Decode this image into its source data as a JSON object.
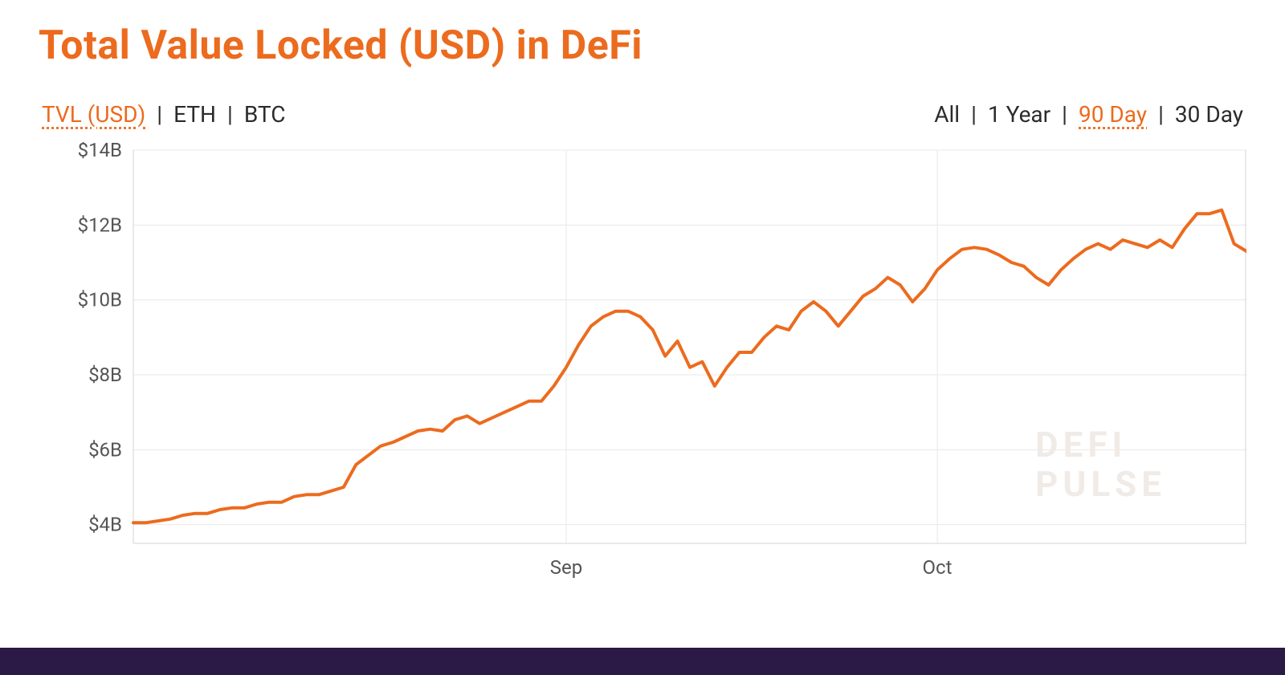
{
  "title": "Total Value Locked (USD) in DeFi",
  "colors": {
    "accent": "#ec6b1e",
    "text": "#2b2b2b",
    "grid": "#e8e8e8",
    "axis": "#d5d5d5",
    "watermark": "#f0ebe6",
    "footer": "#2b1a45",
    "background": "#ffffff"
  },
  "metric_tabs": {
    "items": [
      {
        "label": "TVL (USD)",
        "active": true
      },
      {
        "label": "ETH",
        "active": false
      },
      {
        "label": "BTC",
        "active": false
      }
    ],
    "separator": "|"
  },
  "range_tabs": {
    "items": [
      {
        "label": "All",
        "active": false
      },
      {
        "label": "1 Year",
        "active": false
      },
      {
        "label": "90 Day",
        "active": true
      },
      {
        "label": "30 Day",
        "active": false
      }
    ],
    "separator": "|"
  },
  "watermark": {
    "line1": "DEFI",
    "line2": "PULSE"
  },
  "chart": {
    "type": "line",
    "line_color": "#ec6b1e",
    "line_width": 4,
    "background_color": "#ffffff",
    "grid_color": "#e8e8e8",
    "axis_color": "#d5d5d5",
    "ylabel_color": "#555555",
    "xlabel_color": "#555555",
    "tick_fontsize": 24,
    "ylim": [
      3.5,
      14
    ],
    "yticks": [
      4,
      6,
      8,
      10,
      12,
      14
    ],
    "ytick_labels": [
      "$4B",
      "$6B",
      "$8B",
      "$10B",
      "$12B",
      "$14B"
    ],
    "xlim": [
      0,
      90
    ],
    "xticks": [
      {
        "x": 35,
        "label": "Sep"
      },
      {
        "x": 65,
        "label": "Oct"
      }
    ],
    "series": [
      {
        "x": 0,
        "y": 4.05
      },
      {
        "x": 1,
        "y": 4.05
      },
      {
        "x": 2,
        "y": 4.1
      },
      {
        "x": 3,
        "y": 4.15
      },
      {
        "x": 4,
        "y": 4.25
      },
      {
        "x": 5,
        "y": 4.3
      },
      {
        "x": 6,
        "y": 4.3
      },
      {
        "x": 7,
        "y": 4.4
      },
      {
        "x": 8,
        "y": 4.45
      },
      {
        "x": 9,
        "y": 4.45
      },
      {
        "x": 10,
        "y": 4.55
      },
      {
        "x": 11,
        "y": 4.6
      },
      {
        "x": 12,
        "y": 4.6
      },
      {
        "x": 13,
        "y": 4.75
      },
      {
        "x": 14,
        "y": 4.8
      },
      {
        "x": 15,
        "y": 4.8
      },
      {
        "x": 16,
        "y": 4.9
      },
      {
        "x": 17,
        "y": 5.0
      },
      {
        "x": 18,
        "y": 5.6
      },
      {
        "x": 19,
        "y": 5.85
      },
      {
        "x": 20,
        "y": 6.1
      },
      {
        "x": 21,
        "y": 6.2
      },
      {
        "x": 22,
        "y": 6.35
      },
      {
        "x": 23,
        "y": 6.5
      },
      {
        "x": 24,
        "y": 6.55
      },
      {
        "x": 25,
        "y": 6.5
      },
      {
        "x": 26,
        "y": 6.8
      },
      {
        "x": 27,
        "y": 6.9
      },
      {
        "x": 28,
        "y": 6.7
      },
      {
        "x": 29,
        "y": 6.85
      },
      {
        "x": 30,
        "y": 7.0
      },
      {
        "x": 31,
        "y": 7.15
      },
      {
        "x": 32,
        "y": 7.3
      },
      {
        "x": 33,
        "y": 7.3
      },
      {
        "x": 34,
        "y": 7.7
      },
      {
        "x": 35,
        "y": 8.2
      },
      {
        "x": 36,
        "y": 8.8
      },
      {
        "x": 37,
        "y": 9.3
      },
      {
        "x": 38,
        "y": 9.55
      },
      {
        "x": 39,
        "y": 9.7
      },
      {
        "x": 40,
        "y": 9.7
      },
      {
        "x": 41,
        "y": 9.55
      },
      {
        "x": 42,
        "y": 9.2
      },
      {
        "x": 43,
        "y": 8.5
      },
      {
        "x": 44,
        "y": 8.9
      },
      {
        "x": 45,
        "y": 8.2
      },
      {
        "x": 46,
        "y": 8.35
      },
      {
        "x": 47,
        "y": 7.7
      },
      {
        "x": 48,
        "y": 8.2
      },
      {
        "x": 49,
        "y": 8.6
      },
      {
        "x": 50,
        "y": 8.6
      },
      {
        "x": 51,
        "y": 9.0
      },
      {
        "x": 52,
        "y": 9.3
      },
      {
        "x": 53,
        "y": 9.2
      },
      {
        "x": 54,
        "y": 9.7
      },
      {
        "x": 55,
        "y": 9.95
      },
      {
        "x": 56,
        "y": 9.7
      },
      {
        "x": 57,
        "y": 9.3
      },
      {
        "x": 58,
        "y": 9.7
      },
      {
        "x": 59,
        "y": 10.1
      },
      {
        "x": 60,
        "y": 10.3
      },
      {
        "x": 61,
        "y": 10.6
      },
      {
        "x": 62,
        "y": 10.4
      },
      {
        "x": 63,
        "y": 9.95
      },
      {
        "x": 64,
        "y": 10.3
      },
      {
        "x": 65,
        "y": 10.8
      },
      {
        "x": 66,
        "y": 11.1
      },
      {
        "x": 67,
        "y": 11.35
      },
      {
        "x": 68,
        "y": 11.4
      },
      {
        "x": 69,
        "y": 11.35
      },
      {
        "x": 70,
        "y": 11.2
      },
      {
        "x": 71,
        "y": 11.0
      },
      {
        "x": 72,
        "y": 10.9
      },
      {
        "x": 73,
        "y": 10.6
      },
      {
        "x": 74,
        "y": 10.4
      },
      {
        "x": 75,
        "y": 10.8
      },
      {
        "x": 76,
        "y": 11.1
      },
      {
        "x": 77,
        "y": 11.35
      },
      {
        "x": 78,
        "y": 11.5
      },
      {
        "x": 79,
        "y": 11.35
      },
      {
        "x": 80,
        "y": 11.6
      },
      {
        "x": 81,
        "y": 11.5
      },
      {
        "x": 82,
        "y": 11.4
      },
      {
        "x": 83,
        "y": 11.6
      },
      {
        "x": 84,
        "y": 11.4
      },
      {
        "x": 85,
        "y": 11.9
      },
      {
        "x": 86,
        "y": 12.3
      },
      {
        "x": 87,
        "y": 12.3
      },
      {
        "x": 88,
        "y": 12.4
      },
      {
        "x": 89,
        "y": 11.5
      },
      {
        "x": 90,
        "y": 11.3
      }
    ]
  }
}
